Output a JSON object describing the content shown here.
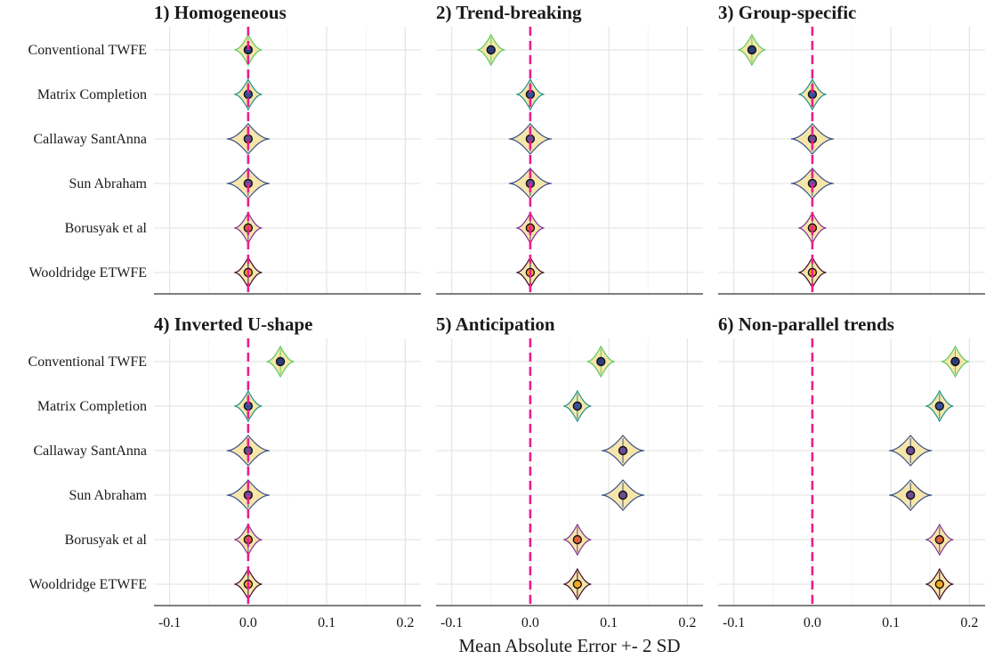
{
  "chart_data": {
    "type": "violin",
    "xlabel": "Mean Absolute Error +- 2 SD",
    "xlim": [
      -0.12,
      0.22
    ],
    "x_ticks": [
      -0.1,
      0.0,
      0.1,
      0.2
    ],
    "x_tick_labels": [
      "-0.1",
      "0.0",
      "0.1",
      "0.2"
    ],
    "reference_line": {
      "x": 0.0,
      "style": "dashed",
      "color": "#e91e8c"
    },
    "methods": [
      "Conventional TWFE",
      "Matrix Completion",
      "Callaway SantAnna",
      "Sun Abraham",
      "Borusyak et al",
      "Wooldridge ETWFE"
    ],
    "method_colors": {
      "outline": [
        "#5ec962",
        "#21918c",
        "#3b528b",
        "#3b528b",
        "#7b3294",
        "#3b0a2c"
      ],
      "dot": [
        "#2c3e7a",
        "#3b4f9a",
        "#6a4c93",
        "#6a4c93",
        "#e0603a",
        "#f5a623"
      ],
      "fill": "#f5e3a1"
    },
    "grid": true,
    "panels": [
      {
        "title": "1) Homogeneous",
        "means": [
          0.0,
          0.0,
          0.0,
          0.0,
          0.0,
          0.0
        ],
        "sd": [
          0.0055,
          0.0055,
          0.0085,
          0.0085,
          0.0055,
          0.0055
        ]
      },
      {
        "title": "2) Trend-breaking",
        "means": [
          -0.05,
          0.0,
          0.0,
          0.0,
          0.0,
          0.0
        ],
        "sd": [
          0.0055,
          0.0055,
          0.0085,
          0.0085,
          0.0055,
          0.0055
        ]
      },
      {
        "title": "3) Group-specific",
        "means": [
          -0.077,
          0.0,
          0.0,
          0.0,
          0.0,
          0.0
        ],
        "sd": [
          0.0055,
          0.0055,
          0.0085,
          0.0085,
          0.0055,
          0.0055
        ]
      },
      {
        "title": "4) Inverted U-shape",
        "means": [
          0.041,
          0.0,
          0.0,
          0.0,
          0.0,
          0.0
        ],
        "sd": [
          0.0055,
          0.0055,
          0.0085,
          0.0085,
          0.0055,
          0.0055
        ]
      },
      {
        "title": "5) Anticipation",
        "means": [
          0.09,
          0.06,
          0.118,
          0.118,
          0.06,
          0.06
        ],
        "sd": [
          0.0055,
          0.0055,
          0.0085,
          0.0085,
          0.0055,
          0.0055
        ]
      },
      {
        "title": "6) Non-parallel trends",
        "means": [
          0.182,
          0.162,
          0.125,
          0.125,
          0.162,
          0.162
        ],
        "sd": [
          0.0055,
          0.0055,
          0.0085,
          0.0085,
          0.0055,
          0.0055
        ]
      }
    ]
  }
}
